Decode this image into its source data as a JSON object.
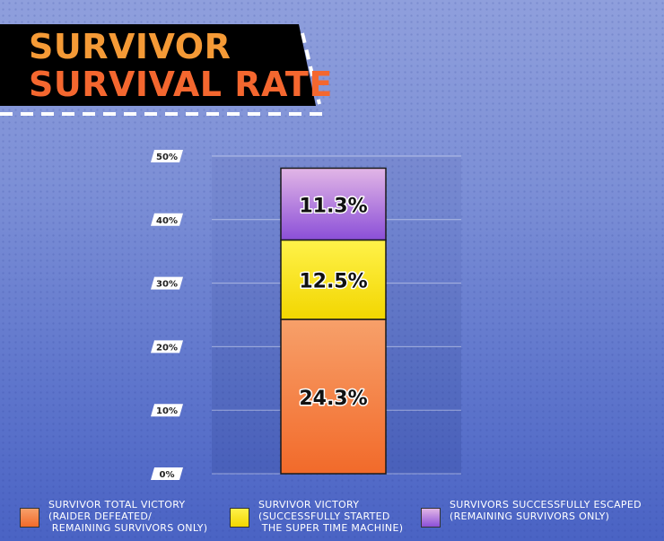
{
  "title": {
    "line1": "SURVIVOR",
    "line2": "SURVIVAL RATE"
  },
  "chart_data": {
    "type": "bar",
    "stacked": true,
    "categories": [
      ""
    ],
    "y_ticks": [
      "0%",
      "10%",
      "20%",
      "30%",
      "40%",
      "50%"
    ],
    "ylim": [
      0,
      50
    ],
    "grid": true,
    "legend_position": "bottom",
    "series": [
      {
        "name": "SURVIVOR TOTAL VICTORY\n(RAIDER DEFEATED/\n REMAINING SURVIVORS ONLY)",
        "values": [
          24.3
        ],
        "label": "24.3%",
        "color": "#f26a2a",
        "color_light": "#f7a06a"
      },
      {
        "name": "SURVIVOR VICTORY\n(SUCCESSFULLY STARTED\n THE SUPER TIME MACHINE)",
        "values": [
          12.5
        ],
        "label": "12.5%",
        "color": "#f2d600",
        "color_light": "#fff24a"
      },
      {
        "name": "SURVIVORS SUCCESSFULLY ESCAPED\n(REMAINING SURVIVORS ONLY)",
        "values": [
          11.3
        ],
        "label": "11.3%",
        "color": "#8b4fd8",
        "color_light": "#e2b6e6"
      }
    ]
  }
}
